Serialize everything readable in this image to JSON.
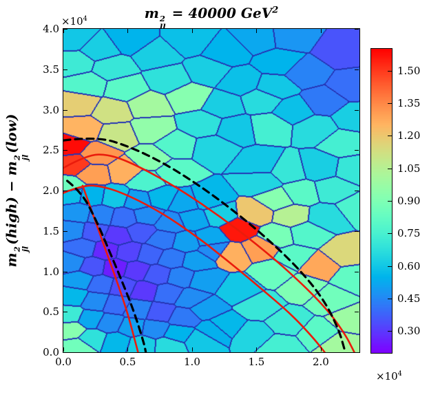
{
  "chart_data": {
    "type": "voronoi_heatmap",
    "title": "m_ll^2 = 40000 GeV^2",
    "ylabel": "m_jl^2(high) - m_jl^2(low)",
    "xlabel": "",
    "title_parts": {
      "var": "m",
      "sup": "2",
      "sub": "ll",
      "rest": " = 40000 ",
      "unit": "GeV",
      "unit_sup": "2"
    },
    "ylabel_parts": {
      "var1": "m",
      "sup1": "2",
      "sub1": "jl",
      "mid1": "(high)",
      "minus": " − ",
      "var2": "m",
      "sup2": "2",
      "sub2": "jl",
      "mid2": "(low)"
    },
    "x_offset": {
      "base": "×10",
      "exp": "4"
    },
    "y_offset": {
      "base": "×10",
      "exp": "4"
    },
    "x_range": [
      0,
      23000
    ],
    "y_range": [
      0,
      40000
    ],
    "x_ticks": {
      "values": [
        0,
        5000,
        10000,
        15000,
        20000
      ],
      "labels": [
        "0.0",
        "0.5",
        "1.0",
        "1.5",
        "2.0"
      ]
    },
    "y_ticks": {
      "values": [
        0,
        5000,
        10000,
        15000,
        20000,
        25000,
        30000,
        35000,
        40000
      ],
      "labels": [
        "0.0",
        "0.5",
        "1.0",
        "1.5",
        "2.0",
        "2.5",
        "3.0",
        "3.5",
        "4.0"
      ]
    },
    "colorbar": {
      "range": [
        0.2,
        1.6
      ],
      "ticks": [
        1.5,
        1.35,
        1.2,
        1.05,
        0.9,
        0.75,
        0.6,
        0.45,
        0.3
      ],
      "labels": [
        "1.50",
        "1.35",
        "1.20",
        "1.05",
        "0.90",
        "0.75",
        "0.60",
        "0.45",
        "0.30"
      ],
      "colormap": "rainbow"
    },
    "cell_edge_color": "#2535b5",
    "seeds": [
      [
        700,
        38800,
        0.6
      ],
      [
        2800,
        37500,
        0.62
      ],
      [
        5200,
        38600,
        0.55
      ],
      [
        900,
        35800,
        0.72
      ],
      [
        3800,
        35200,
        0.7
      ],
      [
        1800,
        33100,
        0.78
      ],
      [
        4800,
        32600,
        0.8
      ],
      [
        1200,
        30800,
        1.18
      ],
      [
        3800,
        29800,
        1.12
      ],
      [
        6500,
        30500,
        1.0
      ],
      [
        1500,
        27600,
        1.25
      ],
      [
        4200,
        26900,
        1.1
      ],
      [
        6800,
        27600,
        0.95
      ],
      [
        7200,
        36800,
        0.62
      ],
      [
        9800,
        38600,
        0.58
      ],
      [
        12600,
        37200,
        0.55
      ],
      [
        15200,
        38800,
        0.52
      ],
      [
        8200,
        33800,
        0.68
      ],
      [
        11200,
        34800,
        0.62
      ],
      [
        13800,
        33400,
        0.58
      ],
      [
        9800,
        31600,
        0.92
      ],
      [
        12400,
        30600,
        0.62
      ],
      [
        15400,
        31200,
        0.66
      ],
      [
        10800,
        28200,
        0.68
      ],
      [
        13400,
        27600,
        0.6
      ],
      [
        8800,
        25600,
        0.78
      ],
      [
        11600,
        25200,
        0.64
      ],
      [
        17600,
        39000,
        0.48
      ],
      [
        21600,
        37200,
        0.35
      ],
      [
        18800,
        34600,
        0.44
      ],
      [
        22400,
        33000,
        0.4
      ],
      [
        16800,
        35900,
        0.55
      ],
      [
        20200,
        31000,
        0.42
      ],
      [
        16400,
        32800,
        0.6
      ],
      [
        22600,
        29000,
        0.62
      ],
      [
        17900,
        29900,
        0.58
      ],
      [
        19600,
        27700,
        0.66
      ],
      [
        21800,
        25900,
        0.74
      ],
      [
        16000,
        27900,
        0.74
      ],
      [
        22600,
        22600,
        0.7
      ],
      [
        19900,
        22900,
        0.62
      ],
      [
        17400,
        22500,
        0.7
      ],
      [
        15300,
        23300,
        0.6
      ],
      [
        15400,
        21100,
        0.64
      ],
      [
        21000,
        20100,
        0.72
      ],
      [
        18400,
        19700,
        0.8
      ],
      [
        22800,
        17900,
        0.76
      ],
      [
        20400,
        16700,
        0.66
      ],
      [
        16600,
        18900,
        0.92
      ],
      [
        17700,
        16900,
        1.05
      ],
      [
        18900,
        14700,
        0.78
      ],
      [
        13600,
        15200,
        1.56
      ],
      [
        14900,
        17200,
        1.2
      ],
      [
        12100,
        17000,
        0.62
      ],
      [
        15300,
        12900,
        1.3
      ],
      [
        13000,
        12100,
        1.26
      ],
      [
        16600,
        14400,
        0.88
      ],
      [
        19800,
        10600,
        1.28
      ],
      [
        21900,
        12300,
        1.15
      ],
      [
        22600,
        9100,
        0.82
      ],
      [
        17900,
        11700,
        0.8
      ],
      [
        16400,
        9900,
        0.84
      ],
      [
        18600,
        8100,
        0.9
      ],
      [
        20800,
        6500,
        0.86
      ],
      [
        22300,
        4100,
        0.98
      ],
      [
        19800,
        2300,
        0.8
      ],
      [
        17400,
        3700,
        0.72
      ],
      [
        15200,
        5700,
        0.7
      ],
      [
        13600,
        7700,
        0.6
      ],
      [
        14800,
        2100,
        0.64
      ],
      [
        12500,
        3300,
        0.56
      ],
      [
        16800,
        700,
        0.74
      ],
      [
        21400,
        900,
        1.0
      ],
      [
        400,
        20400,
        0.85
      ],
      [
        2400,
        22100,
        1.3
      ],
      [
        500,
        25600,
        1.58
      ],
      [
        900,
        23300,
        1.5
      ],
      [
        2600,
        24400,
        1.32
      ],
      [
        4700,
        22400,
        1.26
      ],
      [
        6800,
        23900,
        0.92
      ],
      [
        6400,
        21100,
        0.76
      ],
      [
        8600,
        22300,
        0.8
      ],
      [
        600,
        19600,
        0.58
      ],
      [
        2200,
        19400,
        0.55
      ],
      [
        4000,
        19200,
        0.6
      ],
      [
        5800,
        18800,
        0.5
      ],
      [
        7600,
        19100,
        0.56
      ],
      [
        9400,
        18500,
        0.52
      ],
      [
        11200,
        18900,
        0.56
      ],
      [
        1100,
        17200,
        0.48
      ],
      [
        2900,
        16900,
        0.44
      ],
      [
        4700,
        16600,
        0.4
      ],
      [
        6500,
        16900,
        0.46
      ],
      [
        8300,
        16000,
        0.46
      ],
      [
        10100,
        16500,
        0.52
      ],
      [
        700,
        15100,
        0.46
      ],
      [
        2400,
        14900,
        0.36
      ],
      [
        4200,
        14400,
        0.3
      ],
      [
        6000,
        14900,
        0.36
      ],
      [
        7700,
        13900,
        0.42
      ],
      [
        9500,
        13600,
        0.5
      ],
      [
        11400,
        14000,
        0.52
      ],
      [
        1500,
        12900,
        0.4
      ],
      [
        3300,
        12600,
        0.27
      ],
      [
        5100,
        12400,
        0.32
      ],
      [
        6700,
        12100,
        0.38
      ],
      [
        8400,
        11600,
        0.42
      ],
      [
        10300,
        11300,
        0.5
      ],
      [
        11700,
        12700,
        0.46
      ],
      [
        600,
        11100,
        0.46
      ],
      [
        2300,
        10600,
        0.35
      ],
      [
        4000,
        10400,
        0.25
      ],
      [
        5700,
        10100,
        0.3
      ],
      [
        7300,
        9600,
        0.36
      ],
      [
        9100,
        9300,
        0.44
      ],
      [
        10900,
        8900,
        0.5
      ],
      [
        1300,
        8900,
        0.5
      ],
      [
        2900,
        8400,
        0.4
      ],
      [
        4600,
        8100,
        0.34
      ],
      [
        6300,
        7600,
        0.3
      ],
      [
        8100,
        7300,
        0.4
      ],
      [
        9900,
        6600,
        0.46
      ],
      [
        800,
        6900,
        0.56
      ],
      [
        2500,
        6300,
        0.46
      ],
      [
        4100,
        5900,
        0.4
      ],
      [
        5800,
        5300,
        0.44
      ],
      [
        7500,
        4900,
        0.36
      ],
      [
        9300,
        4300,
        0.42
      ],
      [
        11000,
        5400,
        0.5
      ],
      [
        11700,
        2700,
        0.54
      ],
      [
        2100,
        4100,
        0.52
      ],
      [
        3600,
        3600,
        0.46
      ],
      [
        5300,
        3100,
        0.5
      ],
      [
        7100,
        2900,
        0.46
      ],
      [
        8900,
        2300,
        0.55
      ],
      [
        10600,
        1500,
        0.6
      ],
      [
        500,
        4600,
        0.72
      ],
      [
        600,
        2800,
        0.92
      ],
      [
        2300,
        1700,
        0.68
      ],
      [
        4100,
        1300,
        0.56
      ],
      [
        6100,
        900,
        0.62
      ],
      [
        1100,
        600,
        0.86
      ],
      [
        8200,
        800,
        0.66
      ]
    ],
    "curves": {
      "red_solid": {
        "color": "#ea1c0c",
        "width": 2.6,
        "paths": [
          [
            [
              0,
              22800
            ],
            [
              1800,
              24400
            ],
            [
              3600,
              24500
            ],
            [
              6000,
              22900
            ],
            [
              9000,
              20200
            ],
            [
              12000,
              17000
            ],
            [
              15000,
              13400
            ],
            [
              18000,
              9300
            ],
            [
              20500,
              5300
            ],
            [
              21900,
              2200
            ],
            [
              22600,
              0
            ]
          ],
          [
            [
              0,
              19700
            ],
            [
              1500,
              20700
            ],
            [
              3200,
              20500
            ],
            [
              5200,
              19300
            ],
            [
              7700,
              17200
            ],
            [
              10200,
              14500
            ],
            [
              12700,
              11400
            ],
            [
              15200,
              8100
            ],
            [
              17700,
              4700
            ],
            [
              19400,
              1800
            ],
            [
              20300,
              0
            ]
          ],
          [
            [
              1500,
              20600
            ],
            [
              2400,
              16600
            ],
            [
              3300,
              12600
            ],
            [
              4200,
              8600
            ],
            [
              5000,
              4800
            ],
            [
              5600,
              1200
            ],
            [
              5800,
              0
            ]
          ]
        ]
      },
      "black_dashed": {
        "color": "#000000",
        "width": 3.2,
        "dash": "10 7",
        "paths": [
          [
            [
              0,
              26200
            ],
            [
              2600,
              26700
            ],
            [
              5200,
              25400
            ],
            [
              7800,
              23400
            ],
            [
              10400,
              20800
            ],
            [
              13000,
              17800
            ],
            [
              15600,
              14400
            ],
            [
              18200,
              10500
            ],
            [
              20200,
              6600
            ],
            [
              21400,
              2800
            ],
            [
              21900,
              0
            ]
          ],
          [
            [
              300,
              21200
            ],
            [
              1400,
              19800
            ],
            [
              2500,
              16500
            ],
            [
              3500,
              12800
            ],
            [
              4500,
              9000
            ],
            [
              5500,
              5000
            ],
            [
              6300,
              900
            ],
            [
              6400,
              0
            ]
          ]
        ]
      }
    }
  }
}
